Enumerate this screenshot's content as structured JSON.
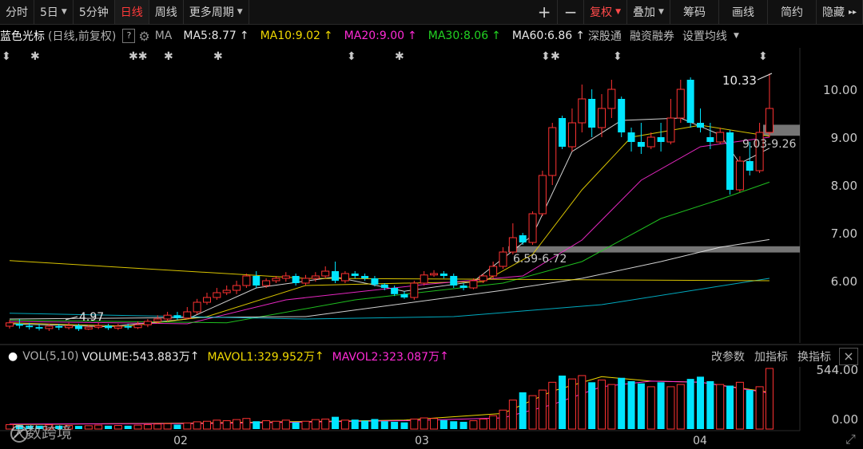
{
  "toolbar": {
    "tabs": [
      {
        "label": "分时",
        "active": false
      },
      {
        "label": "5日",
        "active": false,
        "dropdown": true
      },
      {
        "label": "5分钟",
        "active": false
      },
      {
        "label": "日线",
        "active": true
      },
      {
        "label": "周线",
        "active": false
      },
      {
        "label": "更多周期",
        "active": false,
        "dropdown": true
      }
    ],
    "zoom_in": "+",
    "zoom_out": "−",
    "right_buttons": [
      {
        "label": "复权",
        "dropdown": true,
        "highlight": true
      },
      {
        "label": "叠加",
        "dropdown": true
      },
      {
        "label": "筹码"
      },
      {
        "label": "画线"
      },
      {
        "label": "简约"
      },
      {
        "label": "隐藏"
      }
    ],
    "collapse_icon": "▸▸"
  },
  "legend": {
    "stock_name": "蓝色光标",
    "period": "(日线,前复权)",
    "help": "?",
    "ma_label": "MA",
    "items": [
      {
        "label": "MA5:8.77",
        "color": "#e8e8e8"
      },
      {
        "label": "MA10:9.02",
        "color": "#f0d800"
      },
      {
        "label": "MA20:9.00",
        "color": "#ff2bd6"
      },
      {
        "label": "MA30:8.06",
        "color": "#22d322"
      },
      {
        "label": "MA60:6.86",
        "color": "#e8e8e8"
      }
    ],
    "arrow": "↑",
    "links": [
      "深股通",
      "融资融券",
      "设置均线"
    ]
  },
  "chart_data": [
    {
      "type": "candlestick",
      "y_ticks": [
        10.0,
        9.0,
        8.0,
        7.0,
        6.0
      ],
      "y_tick_labels": [
        "10.00",
        "9.00",
        "8.00",
        "7.00",
        "6.00"
      ],
      "ylim": [
        4.6,
        10.6
      ],
      "x_labels": [
        "02",
        "03",
        "04"
      ],
      "annotations": {
        "high": "10.33",
        "low": "4.97",
        "zone_upper": "9.03-9.26",
        "zone_lower": "6.59-6.72"
      },
      "zones": [
        [
          9.03,
          9.26
        ],
        [
          6.59,
          6.72
        ]
      ],
      "candles": [
        [
          5.05,
          5.12,
          5.0,
          5.18
        ],
        [
          5.1,
          5.06,
          5.0,
          5.2
        ],
        [
          5.06,
          5.03,
          4.98,
          5.12
        ],
        [
          5.03,
          5.0,
          4.96,
          5.1
        ],
        [
          5.0,
          5.05,
          4.95,
          5.1
        ],
        [
          5.05,
          5.02,
          4.97,
          5.1
        ],
        [
          5.02,
          5.06,
          4.98,
          5.12
        ],
        [
          5.06,
          4.99,
          4.95,
          5.1
        ],
        [
          4.99,
          5.03,
          4.97,
          5.08
        ],
        [
          5.03,
          5.06,
          4.99,
          5.12
        ],
        [
          5.06,
          5.01,
          4.97,
          5.1
        ],
        [
          5.01,
          5.05,
          4.97,
          5.1
        ],
        [
          5.05,
          5.02,
          4.98,
          5.1
        ],
        [
          5.02,
          5.08,
          4.99,
          5.15
        ],
        [
          5.08,
          5.15,
          5.03,
          5.2
        ],
        [
          5.15,
          5.2,
          5.1,
          5.28
        ],
        [
          5.2,
          5.28,
          5.15,
          5.35
        ],
        [
          5.28,
          5.22,
          5.18,
          5.35
        ],
        [
          5.22,
          5.35,
          5.2,
          5.45
        ],
        [
          5.35,
          5.55,
          5.3,
          5.62
        ],
        [
          5.55,
          5.65,
          5.5,
          5.75
        ],
        [
          5.65,
          5.75,
          5.6,
          5.85
        ],
        [
          5.75,
          5.8,
          5.7,
          5.9
        ],
        [
          5.8,
          5.9,
          5.72,
          6.0
        ],
        [
          5.9,
          6.1,
          5.85,
          6.15
        ],
        [
          6.1,
          5.9,
          5.85,
          6.2
        ],
        [
          5.9,
          6.0,
          5.85,
          6.05
        ],
        [
          6.0,
          6.05,
          5.95,
          6.1
        ],
        [
          6.05,
          6.1,
          5.98,
          6.18
        ],
        [
          6.1,
          5.95,
          5.9,
          6.15
        ],
        [
          5.95,
          6.05,
          5.9,
          6.12
        ],
        [
          6.05,
          6.1,
          5.98,
          6.18
        ],
        [
          6.1,
          6.2,
          6.05,
          6.3
        ],
        [
          6.2,
          6.0,
          5.95,
          6.4
        ],
        [
          6.0,
          6.15,
          5.95,
          6.2
        ],
        [
          6.15,
          6.1,
          6.05,
          6.2
        ],
        [
          6.1,
          6.05,
          6.0,
          6.15
        ],
        [
          6.05,
          5.92,
          5.88,
          6.1
        ],
        [
          5.92,
          5.85,
          5.8,
          5.95
        ],
        [
          5.85,
          5.72,
          5.68,
          5.9
        ],
        [
          5.72,
          5.65,
          5.62,
          5.78
        ],
        [
          5.65,
          5.95,
          5.6,
          6.0
        ],
        [
          5.95,
          6.12,
          5.9,
          6.2
        ],
        [
          6.12,
          6.15,
          6.08,
          6.22
        ],
        [
          6.15,
          6.1,
          6.05,
          6.2
        ],
        [
          6.1,
          5.9,
          5.85,
          6.15
        ],
        [
          5.9,
          5.85,
          5.8,
          5.95
        ],
        [
          5.85,
          6.0,
          5.82,
          6.05
        ],
        [
          6.0,
          6.1,
          5.95,
          6.15
        ],
        [
          6.1,
          6.3,
          6.05,
          6.4
        ],
        [
          6.3,
          6.6,
          6.25,
          6.7
        ],
        [
          6.6,
          6.9,
          6.55,
          7.2
        ],
        [
          6.95,
          6.8,
          6.75,
          7.0
        ],
        [
          6.8,
          7.4,
          6.75,
          7.45
        ],
        [
          7.4,
          8.2,
          7.35,
          8.3
        ],
        [
          8.2,
          9.2,
          8.0,
          9.3
        ],
        [
          9.4,
          8.8,
          8.75,
          9.45
        ],
        [
          8.8,
          9.3,
          8.7,
          9.6
        ],
        [
          9.3,
          9.8,
          9.1,
          10.1
        ],
        [
          9.8,
          9.2,
          9.0,
          10.0
        ],
        [
          9.2,
          9.6,
          9.0,
          9.9
        ],
        [
          9.6,
          10.0,
          9.4,
          10.2
        ],
        [
          9.8,
          9.1,
          9.0,
          9.85
        ],
        [
          9.1,
          8.9,
          8.7,
          9.2
        ],
        [
          8.9,
          8.8,
          8.65,
          9.3
        ],
        [
          8.8,
          9.0,
          8.75,
          9.1
        ],
        [
          9.0,
          8.9,
          8.7,
          9.3
        ],
        [
          8.9,
          9.4,
          8.85,
          9.8
        ],
        [
          9.4,
          10.0,
          9.3,
          10.2
        ],
        [
          10.2,
          9.3,
          9.2,
          10.25
        ],
        [
          9.3,
          9.2,
          9.1,
          9.6
        ],
        [
          9.0,
          8.9,
          8.75,
          9.3
        ],
        [
          8.9,
          9.1,
          8.85,
          9.2
        ],
        [
          9.1,
          7.9,
          7.8,
          9.15
        ],
        [
          7.9,
          8.5,
          7.85,
          8.6
        ],
        [
          8.5,
          8.3,
          8.2,
          8.9
        ],
        [
          8.3,
          9.1,
          8.25,
          9.3
        ],
        [
          9.1,
          9.6,
          9.0,
          10.33
        ]
      ],
      "ma": [
        {
          "name": "MA5",
          "color": "#e8e8e8",
          "points": [
            [
              0,
              5.1
            ],
            [
              10,
              5.04
            ],
            [
              18,
              5.2
            ],
            [
              25,
              5.85
            ],
            [
              33,
              6.08
            ],
            [
              40,
              5.78
            ],
            [
              47,
              5.98
            ],
            [
              53,
              6.95
            ],
            [
              57,
              8.7
            ],
            [
              62,
              9.35
            ],
            [
              68,
              9.4
            ],
            [
              72,
              9.05
            ],
            [
              74,
              8.45
            ],
            [
              77,
              8.77
            ]
          ]
        },
        {
          "name": "MA10",
          "color": "#f0d800",
          "points": [
            [
              0,
              5.12
            ],
            [
              12,
              5.05
            ],
            [
              20,
              5.25
            ],
            [
              30,
              5.9
            ],
            [
              40,
              5.95
            ],
            [
              48,
              5.98
            ],
            [
              53,
              6.55
            ],
            [
              58,
              7.9
            ],
            [
              63,
              9.0
            ],
            [
              70,
              9.25
            ],
            [
              77,
              9.02
            ]
          ]
        },
        {
          "name": "MA20",
          "color": "#ff2bd6",
          "points": [
            [
              0,
              5.15
            ],
            [
              18,
              5.1
            ],
            [
              28,
              5.6
            ],
            [
              42,
              5.92
            ],
            [
              52,
              6.1
            ],
            [
              58,
              6.85
            ],
            [
              64,
              8.1
            ],
            [
              70,
              8.8
            ],
            [
              77,
              9.0
            ]
          ]
        },
        {
          "name": "MA30",
          "color": "#22d322",
          "points": [
            [
              0,
              5.18
            ],
            [
              22,
              5.12
            ],
            [
              35,
              5.6
            ],
            [
              50,
              5.95
            ],
            [
              58,
              6.4
            ],
            [
              66,
              7.3
            ],
            [
              72,
              7.7
            ],
            [
              77,
              8.06
            ]
          ]
        },
        {
          "name": "MA60",
          "color": "#e8e8e8",
          "points": [
            [
              0,
              5.2
            ],
            [
              30,
              5.25
            ],
            [
              50,
              5.8
            ],
            [
              58,
              6.05
            ],
            [
              66,
              6.4
            ],
            [
              72,
              6.7
            ],
            [
              77,
              6.86
            ]
          ]
        },
        {
          "name": "MA120",
          "color": "#00bcd4",
          "points": [
            [
              0,
              5.32
            ],
            [
              30,
              5.2
            ],
            [
              45,
              5.25
            ],
            [
              60,
              5.5
            ],
            [
              77,
              6.05
            ]
          ]
        },
        {
          "name": "MA250",
          "color": "#f0d800",
          "points": [
            [
              0,
              6.42
            ],
            [
              30,
              6.05
            ],
            [
              77,
              6.0
            ]
          ]
        }
      ]
    },
    {
      "type": "bar",
      "name": "VOL(5,10)",
      "y_tick_labels": [
        "544.00",
        "0.00"
      ],
      "ylim": [
        0,
        600
      ],
      "values": [
        40,
        35,
        30,
        30,
        38,
        30,
        32,
        28,
        30,
        35,
        30,
        32,
        30,
        35,
        40,
        45,
        48,
        40,
        55,
        65,
        70,
        80,
        75,
        85,
        95,
        70,
        75,
        70,
        80,
        60,
        70,
        85,
        90,
        110,
        80,
        85,
        75,
        90,
        70,
        65,
        60,
        90,
        100,
        95,
        80,
        70,
        65,
        75,
        90,
        120,
        170,
        260,
        330,
        300,
        350,
        420,
        480,
        450,
        480,
        420,
        440,
        400,
        460,
        430,
        410,
        380,
        420,
        380,
        400,
        450,
        470,
        430,
        400,
        390,
        420,
        350,
        380,
        544
      ],
      "mavol1": [
        [
          0,
          40
        ],
        [
          20,
          55
        ],
        [
          40,
          80
        ],
        [
          50,
          140
        ],
        [
          55,
          340
        ],
        [
          60,
          470
        ],
        [
          65,
          430
        ],
        [
          70,
          420
        ],
        [
          77,
          330
        ]
      ],
      "mavol2": [
        [
          0,
          45
        ],
        [
          20,
          50
        ],
        [
          40,
          75
        ],
        [
          50,
          100
        ],
        [
          55,
          220
        ],
        [
          60,
          380
        ],
        [
          65,
          430
        ],
        [
          70,
          420
        ],
        [
          77,
          323
        ]
      ]
    }
  ],
  "volume": {
    "label": "VOL(5,10)",
    "items": [
      {
        "label": "VOLUME:543.883万",
        "color": "#e8e8e8"
      },
      {
        "label": "MAVOL1:329.952万",
        "color": "#f0d800"
      },
      {
        "label": "MAVOL2:323.087万",
        "color": "#ff2bd6"
      }
    ],
    "arrow": "↑",
    "buttons": [
      "改参数",
      "加指标",
      "换指标"
    ],
    "close": "×"
  },
  "watermark": "大数跨境",
  "colors": {
    "up": "#ff3232",
    "down": "#00e5ff",
    "bg": "#000000"
  }
}
